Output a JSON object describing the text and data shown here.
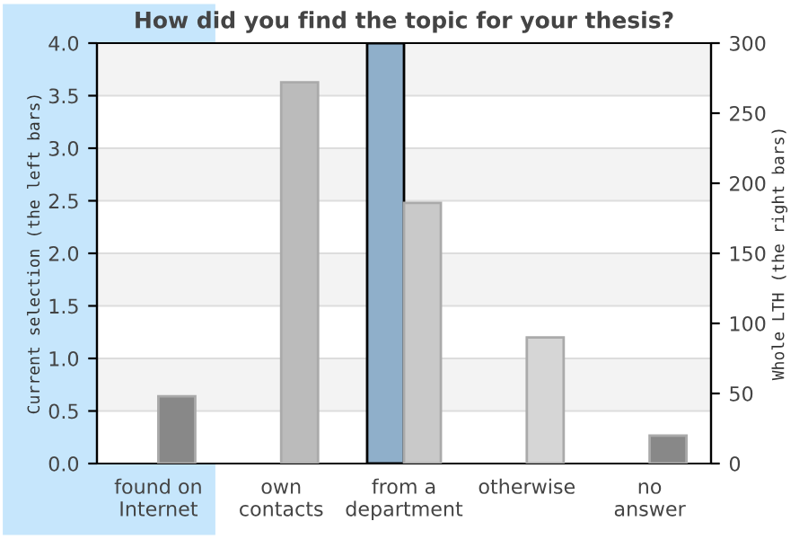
{
  "chart_data": {
    "type": "bar",
    "title": "How did you find the topic for your thesis?",
    "ylabel": "Current selection (the left bars)",
    "y2label": "Whole LTH (the right bars)",
    "categories": [
      "found on\nInternet",
      "own\ncontacts",
      "from a\ndepartment",
      "otherwise",
      "no\nanswer"
    ],
    "series": [
      {
        "color": "#8fafca",
        "values": [
          0,
          0,
          4.0,
          0,
          0
        ]
      },
      {
        "colors": [
          "#888888",
          "#bbbbbb",
          "#c9c9c9",
          "#d6d6d6",
          "#888888"
        ],
        "values": [
          48,
          272,
          186,
          90,
          20
        ],
        "axis": "y2"
      }
    ],
    "ylim": [
      0,
      4.0
    ],
    "yticks": [
      {
        "value": 0,
        "label": "0.0"
      },
      0.5,
      {
        "value": 1,
        "label": "1.0"
      },
      1.5,
      {
        "value": 2,
        "label": "2.0"
      },
      2.5,
      {
        "value": 3,
        "label": "3.0"
      },
      3.5,
      {
        "value": 4,
        "label": "4.0"
      }
    ],
    "y2lim": [
      0,
      300
    ],
    "y2ticks": [
      0,
      50,
      100,
      150,
      200,
      250,
      300
    ],
    "grid": "y",
    "legend": false
  }
}
